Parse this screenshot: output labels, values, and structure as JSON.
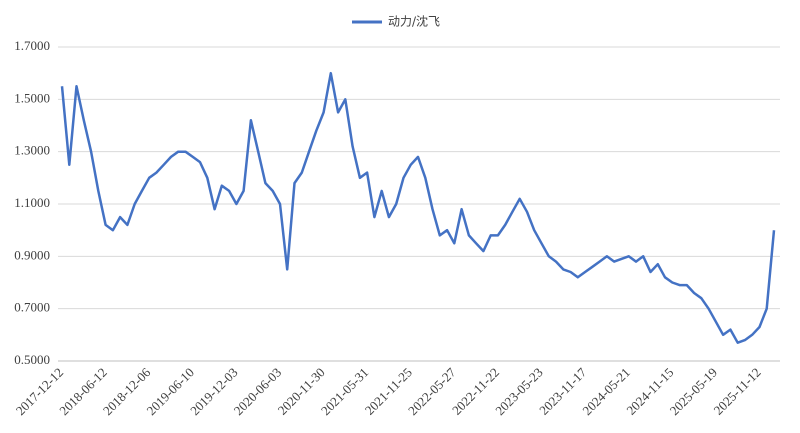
{
  "chart_data": {
    "type": "line",
    "series": [
      {
        "name": "动力/沈飞",
        "color": "#4472c4",
        "values": [
          1.55,
          1.25,
          1.55,
          1.42,
          1.3,
          1.15,
          1.02,
          1.0,
          1.05,
          1.02,
          1.1,
          1.15,
          1.2,
          1.22,
          1.25,
          1.28,
          1.3,
          1.3,
          1.28,
          1.26,
          1.2,
          1.08,
          1.17,
          1.15,
          1.1,
          1.15,
          1.42,
          1.3,
          1.18,
          1.15,
          1.1,
          0.85,
          1.18,
          1.22,
          1.3,
          1.38,
          1.45,
          1.6,
          1.45,
          1.5,
          1.32,
          1.2,
          1.22,
          1.05,
          1.15,
          1.05,
          1.1,
          1.2,
          1.25,
          1.28,
          1.2,
          1.08,
          0.98,
          1.0,
          0.95,
          1.08,
          0.98,
          0.95,
          0.92,
          0.98,
          0.98,
          1.02,
          1.07,
          1.12,
          1.07,
          1.0,
          0.95,
          0.9,
          0.88,
          0.85,
          0.84,
          0.82,
          0.84,
          0.86,
          0.88,
          0.9,
          0.88,
          0.89,
          0.9,
          0.88,
          0.9,
          0.84,
          0.87,
          0.82,
          0.8,
          0.79,
          0.79,
          0.76,
          0.74,
          0.7,
          0.65,
          0.6,
          0.62,
          0.57,
          0.58,
          0.6,
          0.63,
          0.7,
          1.0
        ]
      }
    ],
    "categories": [
      "2017-12-12",
      null,
      null,
      null,
      null,
      null,
      "2018-06-12",
      null,
      null,
      null,
      null,
      null,
      "2018-12-06",
      null,
      null,
      null,
      null,
      null,
      "2019-06-10",
      null,
      null,
      null,
      null,
      null,
      "2019-12-03",
      null,
      null,
      null,
      null,
      null,
      "2020-06-03",
      null,
      null,
      null,
      null,
      null,
      "2020-11-30",
      null,
      null,
      null,
      null,
      null,
      "2021-05-31",
      null,
      null,
      null,
      null,
      null,
      "2021-11-25",
      null,
      null,
      null,
      null,
      null,
      "2022-05-27",
      null,
      null,
      null,
      null,
      null,
      "2022-11-22",
      null,
      null,
      null,
      null,
      null,
      "2023-05-23",
      null,
      null,
      null,
      null,
      null,
      "2023-11-17",
      null,
      null,
      null,
      null,
      null,
      "2024-05-21",
      null,
      null,
      null,
      null,
      null,
      "2024-11-15",
      null,
      null,
      null,
      null,
      null,
      "2025-05-19",
      null,
      null,
      null,
      null,
      null,
      "2025-11-12",
      null,
      null
    ],
    "ylim": [
      0.5,
      1.7
    ],
    "yticks": [
      {
        "value": 0.5,
        "label": "0.5000"
      },
      {
        "value": 0.7,
        "label": "0.7000"
      },
      {
        "value": 0.9,
        "label": "0.9000"
      },
      {
        "value": 1.1,
        "label": "1.1000"
      },
      {
        "value": 1.3,
        "label": "1.3000"
      },
      {
        "value": 1.5,
        "label": "1.5000"
      },
      {
        "value": 1.7,
        "label": "1.7000"
      }
    ],
    "grid": true,
    "legend": "top"
  }
}
